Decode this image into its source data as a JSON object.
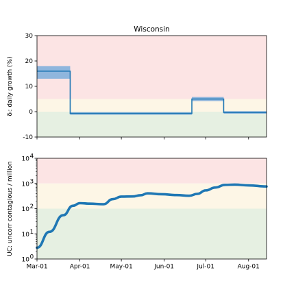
{
  "title": "Wisconsin",
  "colors": {
    "line": "#1f77b4",
    "band": "#8fb6dd",
    "zone_red": "#fce4e4",
    "zone_yellow": "#fdf6e6",
    "zone_green": "#e6f0e2"
  },
  "x_ticks": [
    {
      "date": "2020-03-01",
      "label": "Mar-01"
    },
    {
      "date": "2020-04-01",
      "label": "Apr-01"
    },
    {
      "date": "2020-05-01",
      "label": "May-01"
    },
    {
      "date": "2020-06-01",
      "label": "Jun-01"
    },
    {
      "date": "2020-07-01",
      "label": "Jul-01"
    },
    {
      "date": "2020-08-01",
      "label": "Aug-01"
    }
  ],
  "chart_data": [
    {
      "type": "line",
      "title": "Wisconsin",
      "ylabel": "δᵢ: daily growth (%)",
      "xlim": [
        "2020-03-01",
        "2020-08-14"
      ],
      "ylim": [
        -10,
        30
      ],
      "y_ticks": [
        -10,
        0,
        10,
        20,
        30
      ],
      "zones": {
        "green": [
          -10,
          0
        ],
        "yellow": [
          0,
          5
        ],
        "red": [
          5,
          30
        ]
      },
      "step_segments": [
        {
          "start": "2020-03-01",
          "end": "2020-03-25",
          "value": 16,
          "low": 13,
          "high": 18
        },
        {
          "start": "2020-03-25",
          "end": "2020-06-21",
          "value": -0.7,
          "low": -1.2,
          "high": -0.2
        },
        {
          "start": "2020-06-21",
          "end": "2020-07-14",
          "value": 5,
          "low": 4.2,
          "high": 5.8
        },
        {
          "start": "2020-07-14",
          "end": "2020-08-14",
          "value": -0.3,
          "low": -0.8,
          "high": 0.2
        }
      ]
    },
    {
      "type": "line",
      "ylabel": "UC: uncorr contagious / million",
      "yscale": "log",
      "ylim": [
        1,
        10000
      ],
      "y_ticks": [
        {
          "value": 1,
          "label": "10",
          "exp": "0"
        },
        {
          "value": 10,
          "label": "10",
          "exp": "1"
        },
        {
          "value": 100,
          "label": "10",
          "exp": "2"
        },
        {
          "value": 1000,
          "label": "10",
          "exp": "3"
        },
        {
          "value": 10000,
          "label": "10",
          "exp": "4"
        }
      ],
      "xlim": [
        "2020-03-01",
        "2020-08-14"
      ],
      "zones": {
        "green": [
          1,
          100
        ],
        "yellow": [
          100,
          1000
        ],
        "red": [
          1000,
          10000
        ]
      },
      "series": [
        {
          "points": [
            [
              "2020-03-01",
              2.8
            ],
            [
              "2020-03-10",
              12
            ],
            [
              "2020-03-20",
              55
            ],
            [
              "2020-03-27",
              130
            ],
            [
              "2020-04-01",
              165
            ],
            [
              "2020-04-08",
              158
            ],
            [
              "2020-04-18",
              150
            ],
            [
              "2020-04-25",
              240
            ],
            [
              "2020-05-01",
              300
            ],
            [
              "2020-05-09",
              305
            ],
            [
              "2020-05-15",
              340
            ],
            [
              "2020-05-20",
              405
            ],
            [
              "2020-05-30",
              375
            ],
            [
              "2020-06-10",
              345
            ],
            [
              "2020-06-19",
              325
            ],
            [
              "2020-06-25",
              385
            ],
            [
              "2020-07-01",
              530
            ],
            [
              "2020-07-08",
              690
            ],
            [
              "2020-07-15",
              880
            ],
            [
              "2020-07-22",
              900
            ],
            [
              "2020-08-01",
              840
            ],
            [
              "2020-08-14",
              760
            ]
          ]
        }
      ]
    }
  ]
}
